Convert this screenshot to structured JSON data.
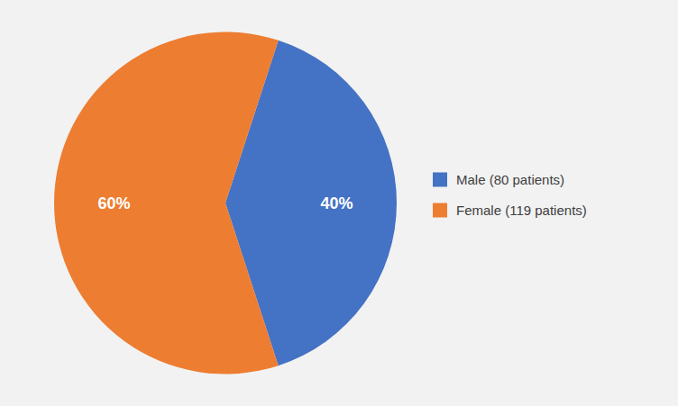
{
  "chart_data": {
    "type": "pie",
    "categories": [
      "Male (80 patients)",
      "Female (119 patients)"
    ],
    "values": [
      40,
      60
    ],
    "value_labels": [
      "40%",
      "60%"
    ],
    "colors": [
      "#4472C4",
      "#ED7D31"
    ],
    "data_labels": true,
    "legend": "right"
  }
}
